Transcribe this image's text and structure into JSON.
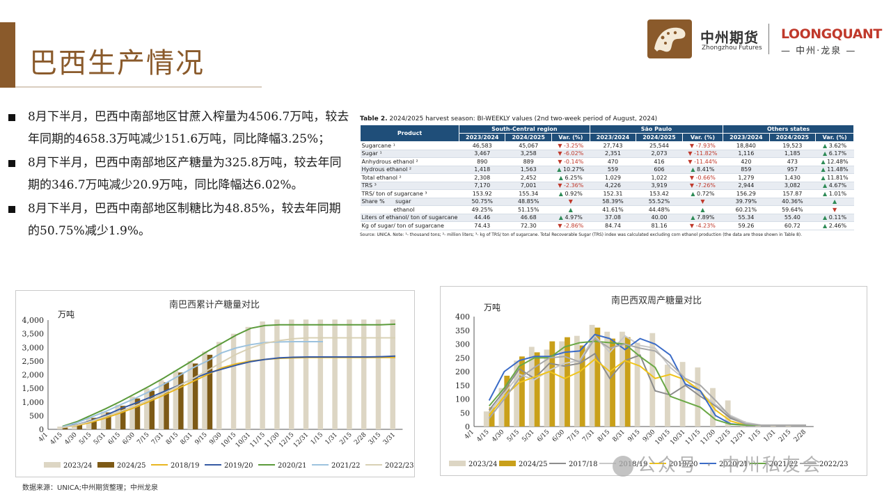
{
  "header": {
    "title": "巴西生产情况",
    "logo_cn": "中州期货",
    "logo_en": "Zhongzhou Futures",
    "lq_main": "LOONGQUANT",
    "lq_sub": "— 中州·龙泉 —"
  },
  "bullets": [
    "8月下半月，巴西中南部地区甘蔗入榨量为4506.7万吨，较去年同期的4658.3万吨减少151.6万吨，同比降幅3.25%；",
    "8月下半月，巴西中南部地区产糖量为325.8万吨，较去年同期的346.7万吨减少20.9万吨，同比降幅达6.02%。",
    "8月下半月，巴西中南部地区制糖比为48.85%，较去年同期的50.75%减少1.9%。"
  ],
  "table": {
    "caption_bold": "Table 2.",
    "caption_rest": " 2024/2025 harvest season: BI-WEEKLY values (2nd two-week period of August, 2024)",
    "col_product": "Product",
    "regions": [
      "South-Central region",
      "São Paulo",
      "Others states"
    ],
    "sub_cols": [
      "2023/2024",
      "2024/2025",
      "Var. (%)"
    ],
    "rows": [
      {
        "label": "Sugarcane ¹",
        "v": [
          [
            "46,583",
            "45,067",
            "dn",
            "-3.25%"
          ],
          [
            "27,743",
            "25,544",
            "dn",
            "-7.93%"
          ],
          [
            "18,840",
            "19,523",
            "up",
            "3.62%"
          ]
        ]
      },
      {
        "label": "Sugar ¹",
        "v": [
          [
            "3,467",
            "3,258",
            "dn",
            "-6.02%"
          ],
          [
            "2,351",
            "2,073",
            "dn",
            "-11.82%"
          ],
          [
            "1,116",
            "1,185",
            "up",
            "6.17%"
          ]
        ]
      },
      {
        "label": "Anhydrous ethanol ²",
        "v": [
          [
            "890",
            "889",
            "dn",
            "-0.14%"
          ],
          [
            "470",
            "416",
            "dn",
            "-11.44%"
          ],
          [
            "420",
            "473",
            "up",
            "12.48%"
          ]
        ]
      },
      {
        "label": "Hydrous ethanol ²",
        "v": [
          [
            "1,418",
            "1,563",
            "up",
            "10.27%"
          ],
          [
            "559",
            "606",
            "up",
            "8.41%"
          ],
          [
            "859",
            "957",
            "up",
            "11.48%"
          ]
        ]
      },
      {
        "label": "Total ethanol ²",
        "v": [
          [
            "2,308",
            "2,452",
            "up",
            "6.25%"
          ],
          [
            "1,029",
            "1,022",
            "dn",
            "-0.66%"
          ],
          [
            "1,279",
            "1,430",
            "up",
            "11.81%"
          ]
        ]
      },
      {
        "label": "TRS ³",
        "v": [
          [
            "7,170",
            "7,001",
            "dn",
            "-2.36%"
          ],
          [
            "4,226",
            "3,919",
            "dn",
            "-7.26%"
          ],
          [
            "2,944",
            "3,082",
            "up",
            "4.67%"
          ]
        ]
      },
      {
        "label": "TRS/ ton of sugarcane ³",
        "v": [
          [
            "153.92",
            "155.34",
            "up",
            "0.92%"
          ],
          [
            "152.31",
            "153.42",
            "up",
            "0.72%"
          ],
          [
            "156.29",
            "157.87",
            "up",
            "1.01%"
          ]
        ]
      },
      {
        "label": "Share %      sugar",
        "v": [
          [
            "50.75%",
            "48.85%",
            "dn",
            ""
          ],
          [
            "58.39%",
            "55.52%",
            "dn",
            ""
          ],
          [
            "39.79%",
            "40.36%",
            "up",
            ""
          ]
        ]
      },
      {
        "label": "                  ethanol",
        "v": [
          [
            "49.25%",
            "51.15%",
            "up",
            ""
          ],
          [
            "41.61%",
            "44.48%",
            "up",
            ""
          ],
          [
            "60.21%",
            "59.64%",
            "dn",
            ""
          ]
        ]
      },
      {
        "label": "Liters of ethanol/ ton of sugarcane",
        "v": [
          [
            "44.46",
            "46.68",
            "up",
            "4.97%"
          ],
          [
            "37.08",
            "40.00",
            "up",
            "7.89%"
          ],
          [
            "55.34",
            "55.40",
            "up",
            "0.11%"
          ]
        ]
      },
      {
        "label": "Kg of sugar/ ton of sugarcane",
        "v": [
          [
            "74.43",
            "72.30",
            "dn",
            "-2.86%"
          ],
          [
            "84.74",
            "81.16",
            "dn",
            "-4.23%"
          ],
          [
            "59.26",
            "60.72",
            "up",
            "2.46%"
          ]
        ]
      }
    ],
    "note": "Source: UNICA. Note: ¹- thousand tons; ²- million liters; ³- kg of TRS/ ton of sugarcane. Total Recoverable Sugar (TRS) index was calculated excluding corn ethanol production (the data are those shown in Table 8)."
  },
  "chart_data": [
    {
      "type": "bar+line",
      "title": "南巴西累计产糖量对比",
      "ylabel": "万吨",
      "ylim": [
        0,
        4000
      ],
      "yticks": [
        "0",
        "500",
        "1,000",
        "1,500",
        "2,000",
        "2,500",
        "3,000",
        "3,500",
        "4,000"
      ],
      "categories": [
        "4/1",
        "4/15",
        "4/30",
        "5/15",
        "5/31",
        "6/15",
        "6/30",
        "7/15",
        "7/31",
        "8/15",
        "8/31",
        "9/15",
        "9/30",
        "10/15",
        "10/31",
        "11/15",
        "11/30",
        "12/15",
        "12/31",
        "1/15",
        "1/31",
        "2/15",
        "2/28",
        "3/15",
        "3/31"
      ],
      "series": [
        {
          "name": "2023/24",
          "kind": "bar",
          "color": "#ddd6c4",
          "values": [
            null,
            100,
            250,
            450,
            650,
            900,
            1200,
            1500,
            1800,
            2150,
            2500,
            2850,
            3200,
            3500,
            3750,
            3950,
            4020,
            4020,
            4020,
            4020,
            4020,
            4020,
            4020,
            4020,
            4020
          ]
        },
        {
          "name": "2024/25",
          "kind": "bar",
          "color": "#7d5a16",
          "values": [
            null,
            60,
            200,
            420,
            620,
            860,
            1130,
            1410,
            1720,
            2080,
            2410,
            2730,
            null,
            null,
            null,
            null,
            null,
            null,
            null,
            null,
            null,
            null,
            null,
            null,
            null
          ]
        },
        {
          "name": "2018/19",
          "kind": "line",
          "color": "#e8b520",
          "values": [
            null,
            70,
            140,
            260,
            420,
            600,
            800,
            1020,
            1250,
            1500,
            1750,
            2000,
            2250,
            2400,
            2500,
            2560,
            2600,
            2620,
            2630,
            2630,
            2630,
            2630,
            2630,
            2630,
            2630
          ]
        },
        {
          "name": "2019/20",
          "kind": "line",
          "color": "#3559a3",
          "values": [
            null,
            80,
            170,
            320,
            520,
            750,
            950,
            1160,
            1380,
            1600,
            1850,
            2050,
            2200,
            2350,
            2480,
            2560,
            2620,
            2640,
            2650,
            2650,
            2650,
            2650,
            2650,
            2660,
            2680
          ]
        },
        {
          "name": "2020/21",
          "kind": "line",
          "color": "#5a9a3a",
          "values": [
            null,
            110,
            280,
            520,
            760,
            1020,
            1300,
            1580,
            1880,
            2200,
            2520,
            2850,
            3150,
            3450,
            3700,
            3800,
            3830,
            3830,
            3830,
            3830,
            3830,
            3830,
            3830,
            3830,
            3850
          ]
        },
        {
          "name": "2021/22",
          "kind": "line",
          "color": "#9cc2de",
          "values": [
            null,
            90,
            240,
            450,
            660,
            900,
            1130,
            1380,
            1650,
            1950,
            2250,
            2500,
            2800,
            2980,
            3100,
            3180,
            3200,
            3210,
            3210,
            3210,
            null,
            null,
            null,
            null,
            null
          ]
        },
        {
          "name": "2022/23",
          "kind": "line",
          "color": "#d8d0b4",
          "values": [
            null,
            60,
            160,
            300,
            480,
            660,
            860,
            1080,
            1320,
            1580,
            1860,
            2150,
            2450,
            2750,
            2980,
            3150,
            3250,
            3320,
            3350,
            3350,
            3350,
            3350,
            3350,
            3350,
            3350
          ]
        }
      ]
    },
    {
      "type": "bar+line",
      "title": "南巴西双周产糖量对比",
      "ylabel": "万吨",
      "ylim": [
        0,
        400
      ],
      "yticks": [
        "0",
        "50",
        "100",
        "150",
        "200",
        "250",
        "300",
        "350",
        "400"
      ],
      "categories": [
        "4/1",
        "4/15",
        "4/30",
        "5/15",
        "5/31",
        "6/15",
        "6/30",
        "7/15",
        "7/31",
        "8/15",
        "8/31",
        "9/15",
        "9/30",
        "10/15",
        "10/31",
        "11/15",
        "11/30",
        "12/15",
        "12/31",
        "1/15",
        "1/31",
        "2/15",
        "2/28"
      ],
      "series": [
        {
          "name": "2023/24",
          "kind": "bar",
          "color": "#ddd6c4",
          "values": [
            null,
            55,
            140,
            240,
            290,
            280,
            310,
            330,
            370,
            345,
            345,
            305,
            340,
            225,
            235,
            215,
            140,
            95,
            20,
            5,
            5,
            5,
            null
          ]
        },
        {
          "name": "2024/25",
          "kind": "bar",
          "color": "#c9a01a",
          "values": [
            null,
            70,
            185,
            255,
            270,
            310,
            325,
            295,
            360,
            320,
            325,
            null,
            null,
            null,
            null,
            null,
            null,
            null,
            null,
            null,
            null,
            null,
            null
          ]
        },
        {
          "name": "2017/18",
          "kind": "line",
          "color": "#8c8c8c",
          "values": [
            null,
            60,
            130,
            210,
            175,
            230,
            220,
            230,
            265,
            175,
            240,
            260,
            130,
            115,
            150,
            110,
            75,
            30,
            10,
            5,
            5,
            5,
            5
          ]
        },
        {
          "name": "2018/19",
          "kind": "line",
          "color": "#c8c8c8",
          "values": [
            null,
            50,
            120,
            190,
            170,
            205,
            230,
            240,
            330,
            270,
            330,
            295,
            285,
            215,
            170,
            120,
            80,
            40,
            15,
            5,
            5,
            5,
            5
          ]
        },
        {
          "name": "2019/20",
          "kind": "line",
          "color": "#f0c419",
          "values": [
            null,
            40,
            110,
            160,
            180,
            200,
            175,
            200,
            245,
            200,
            240,
            220,
            175,
            190,
            170,
            130,
            60,
            20,
            5,
            5,
            5,
            5,
            5
          ]
        },
        {
          "name": "2020/21",
          "kind": "line",
          "color": "#3a6bc7",
          "values": [
            null,
            95,
            200,
            240,
            255,
            255,
            270,
            275,
            335,
            320,
            280,
            320,
            300,
            260,
            155,
            130,
            40,
            10,
            5,
            5,
            5,
            5,
            5
          ]
        },
        {
          "name": "2021/22",
          "kind": "line",
          "color": "#6aa845",
          "values": [
            null,
            75,
            140,
            220,
            250,
            250,
            290,
            305,
            310,
            305,
            300,
            255,
            215,
            110,
            90,
            70,
            25,
            8,
            5,
            5,
            5,
            5,
            5
          ]
        },
        {
          "name": "2022/23",
          "kind": "line",
          "color": "#a8a8a8",
          "values": [
            null,
            30,
            100,
            175,
            215,
            250,
            255,
            235,
            320,
            285,
            300,
            285,
            275,
            230,
            175,
            150,
            95,
            35,
            10,
            5,
            5,
            5,
            5
          ]
        }
      ]
    }
  ],
  "source": "数据来源：UNICA;中州期货整理；中州龙泉",
  "watermark": "公众号 · 中州私友会"
}
